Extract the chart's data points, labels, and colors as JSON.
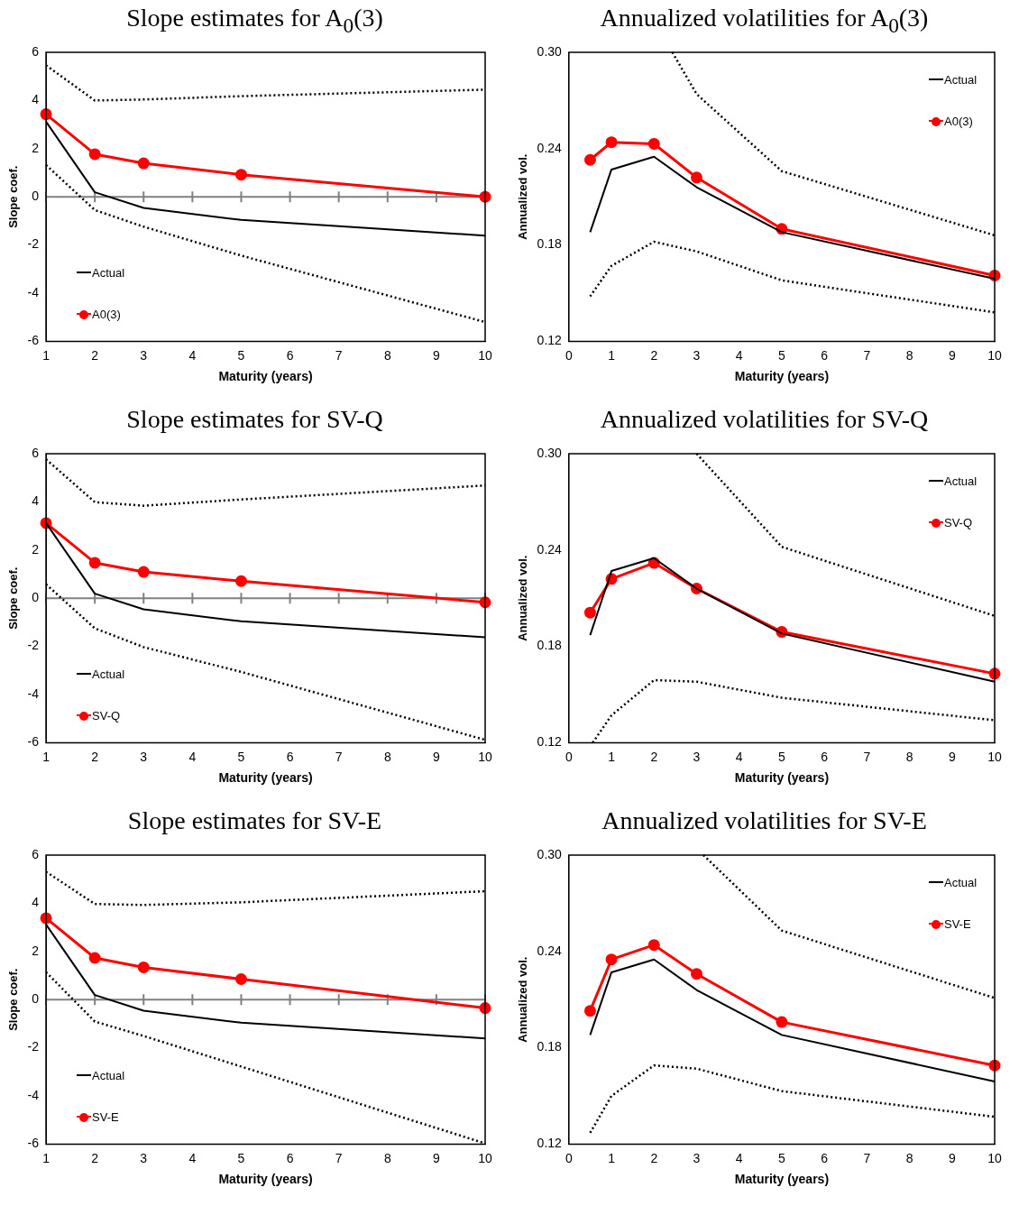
{
  "chart_data": [
    {
      "type": "line",
      "title": "Slope estimates for A$_{0}$(3)",
      "xlabel": "Maturity (years)",
      "ylabel": "Slope coef.",
      "x": [
        1,
        2,
        3,
        5,
        10
      ],
      "xlim": [
        1,
        10
      ],
      "xticks": [
        1,
        2,
        3,
        4,
        5,
        6,
        7,
        8,
        9,
        10
      ],
      "ylim": [
        -6,
        6
      ],
      "yticks": [
        -6,
        -4,
        -2,
        0,
        2,
        4,
        6
      ],
      "legend": "bottom left",
      "ref_lines": [
        {
          "axis": "y",
          "value": 0,
          "color": "#808080"
        }
      ],
      "series": [
        {
          "name": "Actual",
          "color": "#000000",
          "values": [
            3.12,
            0.19,
            -0.46,
            -0.96,
            -1.61
          ],
          "line_style": "solid"
        },
        {
          "name": "A0(3)",
          "color": "#ff0000",
          "values": [
            3.43,
            1.77,
            1.39,
            0.92,
            0
          ],
          "marker": "circle",
          "line_style": "solid"
        },
        {
          "color": "#000000",
          "values": [
            5.46,
            4.0,
            4.04,
            4.18,
            4.45
          ],
          "line_style": "dotted"
        },
        {
          "color": "#000000",
          "values": [
            1.32,
            -0.55,
            -1.24,
            -2.44,
            -5.2
          ],
          "line_style": "dotted"
        }
      ]
    },
    {
      "type": "line",
      "title": "Annualized volatilities for A$_{0}$(3)",
      "xlabel": "Maturity (years)",
      "ylabel": "Annualized vol.",
      "x": [
        0.5,
        1,
        2,
        3,
        5,
        10
      ],
      "xlim": [
        0,
        10
      ],
      "xticks": [
        0,
        1,
        2,
        3,
        4,
        5,
        6,
        7,
        8,
        9,
        10
      ],
      "ylim": [
        0.12,
        0.3
      ],
      "yticks": [
        {
          "value": 0.12,
          "label": "0.12"
        },
        {
          "value": 0.18,
          "label": "0.18"
        },
        {
          "value": 0.24,
          "label": "0.24"
        },
        {
          "value": 0.3,
          "label": "0.30"
        }
      ],
      "legend": "top right",
      "series": [
        {
          "name": "Actual",
          "color": "#000000",
          "values": [
            0.188,
            0.227,
            0.235,
            0.216,
            0.188,
            0.159
          ],
          "line_style": "solid"
        },
        {
          "name": "A0(3)",
          "color": "#ff0000",
          "values": [
            0.233,
            0.244,
            0.243,
            0.222,
            0.19,
            0.161
          ],
          "marker": "circle",
          "line_style": "solid"
        },
        {
          "color": "#000000",
          "x": [
            2.43,
            3,
            5,
            10
          ],
          "values": [
            0.3,
            0.274,
            0.226,
            0.186
          ],
          "line_style": "dotted"
        },
        {
          "color": "#000000",
          "values": [
            0.148,
            0.167,
            0.182,
            0.176,
            0.158,
            0.138
          ],
          "line_style": "dotted"
        }
      ]
    },
    {
      "type": "line",
      "title": "Slope estimates for SV-Q",
      "xlabel": "Maturity (years)",
      "ylabel": "Slope coef.",
      "x": [
        1,
        2,
        3,
        5,
        10
      ],
      "xlim": [
        1,
        10
      ],
      "xticks": [
        1,
        2,
        3,
        4,
        5,
        6,
        7,
        8,
        9,
        10
      ],
      "ylim": [
        -6,
        6
      ],
      "yticks": [
        -6,
        -4,
        -2,
        0,
        2,
        4,
        6
      ],
      "legend": "bottom left",
      "ref_lines": [
        {
          "axis": "y",
          "value": 0,
          "color": "#808080"
        }
      ],
      "series": [
        {
          "name": "Actual",
          "color": "#000000",
          "values": [
            3.12,
            0.19,
            -0.46,
            -0.96,
            -1.62
          ],
          "line_style": "solid"
        },
        {
          "name": "SV-Q",
          "color": "#ff0000",
          "values": [
            3.12,
            1.47,
            1.09,
            0.71,
            -0.17
          ],
          "marker": "circle",
          "line_style": "solid"
        },
        {
          "color": "#000000",
          "values": [
            5.77,
            3.99,
            3.84,
            4.1,
            4.68
          ],
          "line_style": "dotted"
        },
        {
          "color": "#000000",
          "values": [
            0.58,
            -1.25,
            -2.03,
            -3.06,
            -5.88
          ],
          "line_style": "dotted"
        }
      ]
    },
    {
      "type": "line",
      "title": "Annualized volatilities for SV-Q",
      "xlabel": "Maturity (years)",
      "ylabel": "Annualized vol.",
      "x": [
        0.5,
        1,
        2,
        3,
        5,
        10
      ],
      "xlim": [
        0,
        10
      ],
      "xticks": [
        0,
        1,
        2,
        3,
        4,
        5,
        6,
        7,
        8,
        9,
        10
      ],
      "ylim": [
        0.12,
        0.3
      ],
      "yticks": [
        {
          "value": 0.12,
          "label": "0.12"
        },
        {
          "value": 0.18,
          "label": "0.18"
        },
        {
          "value": 0.24,
          "label": "0.24"
        },
        {
          "value": 0.3,
          "label": "0.30"
        }
      ],
      "legend": "top right",
      "series": [
        {
          "name": "Actual",
          "color": "#000000",
          "values": [
            0.187,
            0.227,
            0.235,
            0.216,
            0.188,
            0.158
          ],
          "line_style": "solid"
        },
        {
          "name": "SV-Q",
          "color": "#ff0000",
          "values": [
            0.201,
            0.222,
            0.232,
            0.216,
            0.189,
            0.163
          ],
          "marker": "circle",
          "line_style": "solid"
        },
        {
          "color": "#000000",
          "x": [
            3,
            5,
            10
          ],
          "values": [
            0.3,
            0.242,
            0.199
          ],
          "line_style": "dotted"
        },
        {
          "color": "#000000",
          "x": [
            0.56,
            1,
            2,
            3,
            5,
            10
          ],
          "values": [
            0.12,
            0.137,
            0.159,
            0.158,
            0.148,
            0.134
          ],
          "line_style": "dotted"
        }
      ]
    },
    {
      "type": "line",
      "title": "Slope estimates for SV-E",
      "xlabel": "Maturity (years)",
      "ylabel": "Slope coef.",
      "x": [
        1,
        2,
        3,
        5,
        10
      ],
      "xlim": [
        1,
        10
      ],
      "xticks": [
        1,
        2,
        3,
        4,
        5,
        6,
        7,
        8,
        9,
        10
      ],
      "ylim": [
        -6,
        6
      ],
      "yticks": [
        -6,
        -4,
        -2,
        0,
        2,
        4,
        6
      ],
      "legend": "bottom left",
      "ref_lines": [
        {
          "axis": "y",
          "value": 0,
          "color": "#808080"
        }
      ],
      "series": [
        {
          "name": "Actual",
          "color": "#000000",
          "values": [
            3.12,
            0.19,
            -0.46,
            -0.96,
            -1.61
          ],
          "line_style": "solid"
        },
        {
          "name": "SV-E",
          "color": "#ff0000",
          "values": [
            3.38,
            1.73,
            1.34,
            0.85,
            -0.35
          ],
          "marker": "circle",
          "line_style": "solid"
        },
        {
          "color": "#000000",
          "values": [
            5.31,
            3.97,
            3.93,
            4.04,
            4.5
          ],
          "line_style": "dotted"
        },
        {
          "color": "#000000",
          "values": [
            1.14,
            -0.91,
            -1.51,
            -2.78,
            -5.97
          ],
          "line_style": "dotted"
        }
      ]
    },
    {
      "type": "line",
      "title": "Annualized volatilities for SV-E",
      "xlabel": "Maturity (years)",
      "ylabel": "Annualized vol.",
      "x": [
        0.5,
        1,
        2,
        3,
        5,
        10
      ],
      "xlim": [
        0,
        10
      ],
      "xticks": [
        0,
        1,
        2,
        3,
        4,
        5,
        6,
        7,
        8,
        9,
        10
      ],
      "ylim": [
        0.12,
        0.3
      ],
      "yticks": [
        {
          "value": 0.12,
          "label": "0.12"
        },
        {
          "value": 0.18,
          "label": "0.18"
        },
        {
          "value": 0.24,
          "label": "0.24"
        },
        {
          "value": 0.3,
          "label": "0.30"
        }
      ],
      "legend": "top right",
      "series": [
        {
          "name": "Actual",
          "color": "#000000",
          "values": [
            0.188,
            0.227,
            0.235,
            0.216,
            0.188,
            0.159
          ],
          "line_style": "solid"
        },
        {
          "name": "SV-E",
          "color": "#ff0000",
          "values": [
            0.203,
            0.235,
            0.244,
            0.226,
            0.196,
            0.169
          ],
          "marker": "circle",
          "line_style": "solid"
        },
        {
          "color": "#000000",
          "x": [
            3.16,
            5,
            10
          ],
          "values": [
            0.3,
            0.253,
            0.211
          ],
          "line_style": "dotted"
        },
        {
          "color": "#000000",
          "values": [
            0.127,
            0.15,
            0.169,
            0.167,
            0.153,
            0.137
          ],
          "line_style": "dotted"
        }
      ]
    }
  ]
}
